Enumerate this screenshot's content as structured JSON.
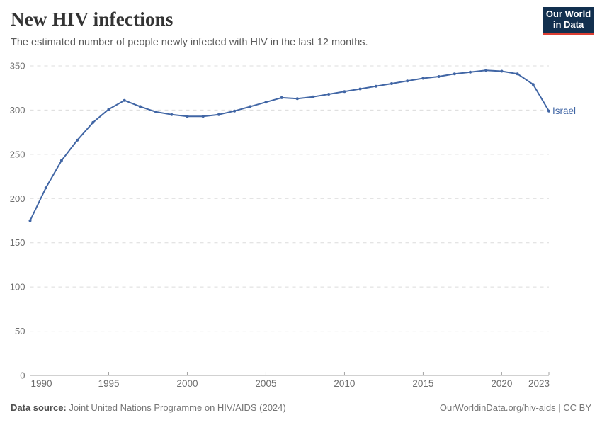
{
  "header": {
    "title": "New HIV infections",
    "subtitle": "The estimated number of people newly infected with HIV in the last 12 months.",
    "logo": {
      "line1": "Our World",
      "line2": "in Data",
      "bg_color": "#12304f",
      "accent_color": "#dc3e32"
    }
  },
  "chart_data": {
    "type": "line",
    "title": "New HIV infections",
    "subtitle": "The estimated number of people newly infected with HIV in the last 12 months.",
    "entity_label": "Israel",
    "years": [
      1990,
      1991,
      1992,
      1993,
      1994,
      1995,
      1996,
      1997,
      1998,
      1999,
      2000,
      2001,
      2002,
      2003,
      2004,
      2005,
      2006,
      2007,
      2008,
      2009,
      2010,
      2011,
      2012,
      2013,
      2014,
      2015,
      2016,
      2017,
      2018,
      2019,
      2020,
      2021,
      2022,
      2023
    ],
    "series": [
      {
        "name": "Israel",
        "values": [
          175,
          212,
          243,
          266,
          286,
          301,
          311,
          304,
          298,
          295,
          293,
          293,
          295,
          299,
          304,
          309,
          314,
          313,
          315,
          318,
          321,
          324,
          327,
          330,
          333,
          336,
          338,
          341,
          343,
          345,
          344,
          341,
          329,
          299
        ]
      }
    ],
    "xlabel": "",
    "ylabel": "",
    "xlim": [
      1990,
      2023
    ],
    "ylim": [
      0,
      350
    ],
    "x_ticks": [
      1990,
      1995,
      2000,
      2005,
      2010,
      2015,
      2020,
      2023
    ],
    "y_ticks": [
      0,
      50,
      100,
      150,
      200,
      250,
      300,
      350
    ],
    "grid": "horizontal-dashed",
    "legend_position": "end-of-line-label",
    "line_color": "#4166a5",
    "marker": "dot",
    "grid_color": "#dcdcdc",
    "axis_color": "#a3a3a3",
    "tick_label_color": "#6e6e6e"
  },
  "footer": {
    "source_label": "Data source:",
    "source_text": " Joint United Nations Programme on HIV/AIDS (2024)",
    "url_text": "OurWorldinData.org/hiv-aids",
    "license_text": " | CC BY"
  }
}
